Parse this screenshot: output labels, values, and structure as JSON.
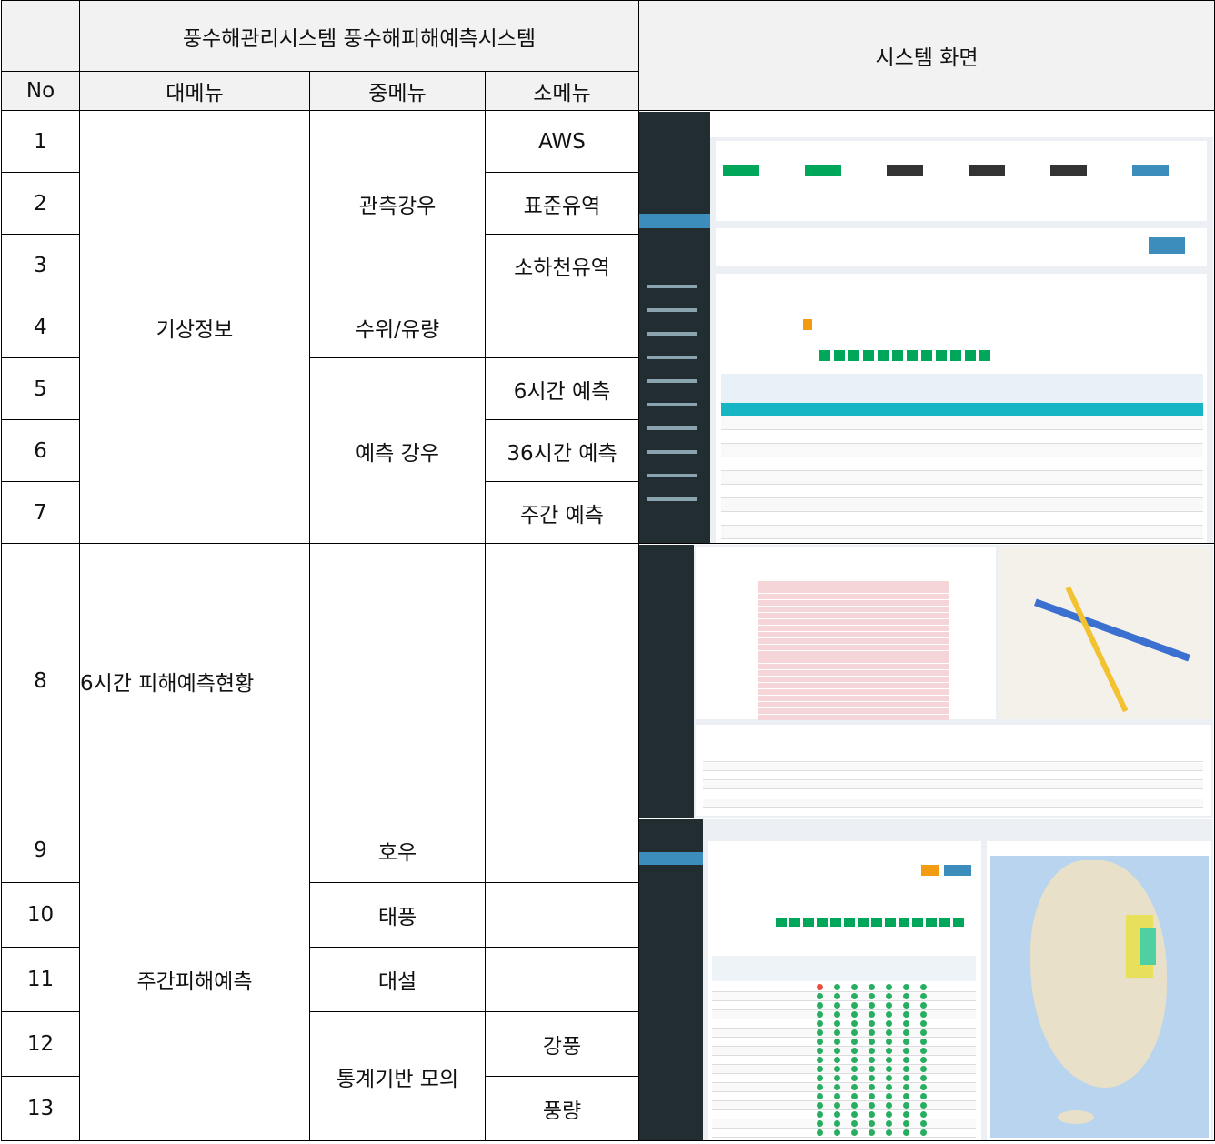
{
  "header": {
    "title": "풍수해관리시스템 풍수해피해예측시스템",
    "screen_title": "시스템 화면"
  },
  "columns": [
    "No",
    "대메뉴",
    "중메뉴",
    "소메뉴"
  ],
  "rows": [
    {
      "no": "1",
      "major": "기상정보",
      "middle": "관측강우",
      "minor": "AWS"
    },
    {
      "no": "2",
      "minor": "표준유역"
    },
    {
      "no": "3",
      "minor": "소하천유역"
    },
    {
      "no": "4",
      "middle": "수위/유량"
    },
    {
      "no": "5",
      "middle": "예측 강우",
      "minor": "6시간 예측"
    },
    {
      "no": "6",
      "minor": "36시간 예측"
    },
    {
      "no": "7",
      "minor": "주간 예측"
    },
    {
      "no": "8",
      "major": "6시간 피해예측현황"
    },
    {
      "no": "9",
      "major": "주간피해예측",
      "middle": "호우"
    },
    {
      "no": "10",
      "middle": "태풍"
    },
    {
      "no": "11",
      "middle": "대설"
    },
    {
      "no": "12",
      "middle": "통계기반 모의",
      "minor": "강풍"
    },
    {
      "no": "13",
      "minor": "풍량"
    }
  ]
}
